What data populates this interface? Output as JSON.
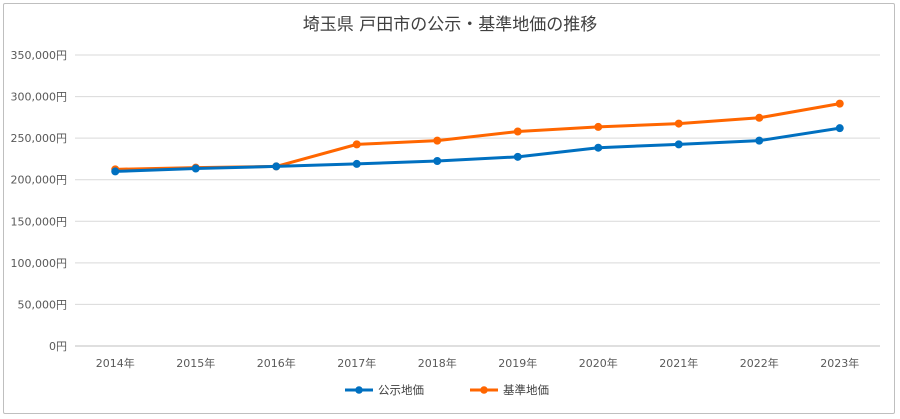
{
  "chart_data": {
    "type": "line",
    "title": "埼玉県 戸田市の公示・基準地価の推移",
    "categories": [
      "2014年",
      "2015年",
      "2016年",
      "2017年",
      "2018年",
      "2019年",
      "2020年",
      "2021年",
      "2022年",
      "2023年"
    ],
    "series": [
      {
        "name": "公示地価",
        "color": "#0070c0",
        "values": [
          210000,
          213500,
          216000,
          219000,
          222500,
          227500,
          238500,
          242500,
          247000,
          262000
        ]
      },
      {
        "name": "基準地価",
        "color": "#ff6600",
        "values": [
          212500,
          214500,
          216000,
          242500,
          247000,
          258000,
          263500,
          267500,
          274500,
          291500
        ]
      }
    ],
    "yticks": [
      "0円",
      "50,000円",
      "100,000円",
      "150,000円",
      "200,000円",
      "250,000円",
      "300,000円",
      "350,000円"
    ],
    "ylim": [
      0,
      350000
    ],
    "grid": true,
    "legend_position": "bottom"
  }
}
